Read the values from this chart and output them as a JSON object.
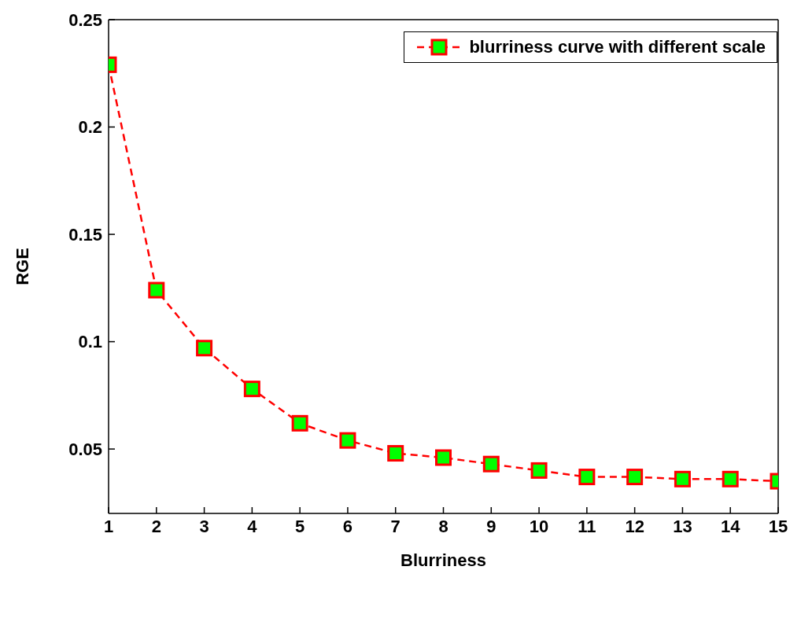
{
  "chart_data": {
    "type": "line",
    "xlabel": "Blurriness",
    "ylabel": "RGE",
    "x": [
      1,
      2,
      3,
      4,
      5,
      6,
      7,
      8,
      9,
      10,
      11,
      12,
      13,
      14,
      15
    ],
    "series": [
      {
        "name": "blurriness curve with different scale",
        "color": "#ff0000",
        "values": [
          0.229,
          0.124,
          0.097,
          0.078,
          0.062,
          0.054,
          0.048,
          0.046,
          0.043,
          0.04,
          0.037,
          0.037,
          0.036,
          0.036,
          0.035
        ]
      }
    ],
    "xlim": [
      1,
      15
    ],
    "xticks": [
      1,
      2,
      3,
      4,
      5,
      6,
      7,
      8,
      9,
      10,
      11,
      12,
      13,
      14,
      15
    ],
    "ylim": [
      0.02,
      0.25
    ],
    "yticks": [
      0.05,
      0.1,
      0.15,
      0.2,
      0.25
    ],
    "grid": false,
    "legend": "top right",
    "marker": "square",
    "line_style": "dashed"
  }
}
